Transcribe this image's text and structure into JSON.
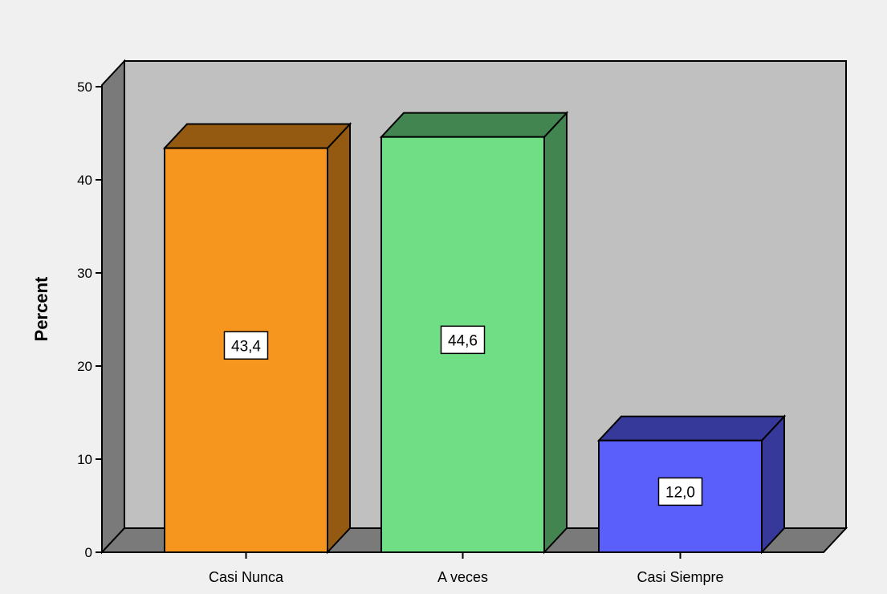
{
  "chart_data": {
    "type": "bar",
    "style": "3d",
    "title": "",
    "xlabel": "",
    "ylabel": "Percent",
    "ylim": [
      0,
      50
    ],
    "y_ticks": [
      0,
      10,
      20,
      30,
      40,
      50
    ],
    "grid": false,
    "legend": "none",
    "categories": [
      "Casi Nunca",
      "A veces",
      "Casi Siempre"
    ],
    "values": [
      43.4,
      44.6,
      12.0
    ],
    "data_labels": [
      "43,4",
      "44,6",
      "12,0"
    ],
    "colors": {
      "bars": [
        "#f7961e",
        "#70de84",
        "#5a5ffc"
      ],
      "bar_sides": [
        "#945a12",
        "#438550",
        "#36399a"
      ],
      "bar_tops": [
        "#945a12",
        "#438550",
        "#36399a"
      ],
      "plot_background": "#c0c0c0",
      "side_wall": "#7a7a7a",
      "floor": "#7a7a7a",
      "page_background": "#f0f0f0"
    }
  }
}
